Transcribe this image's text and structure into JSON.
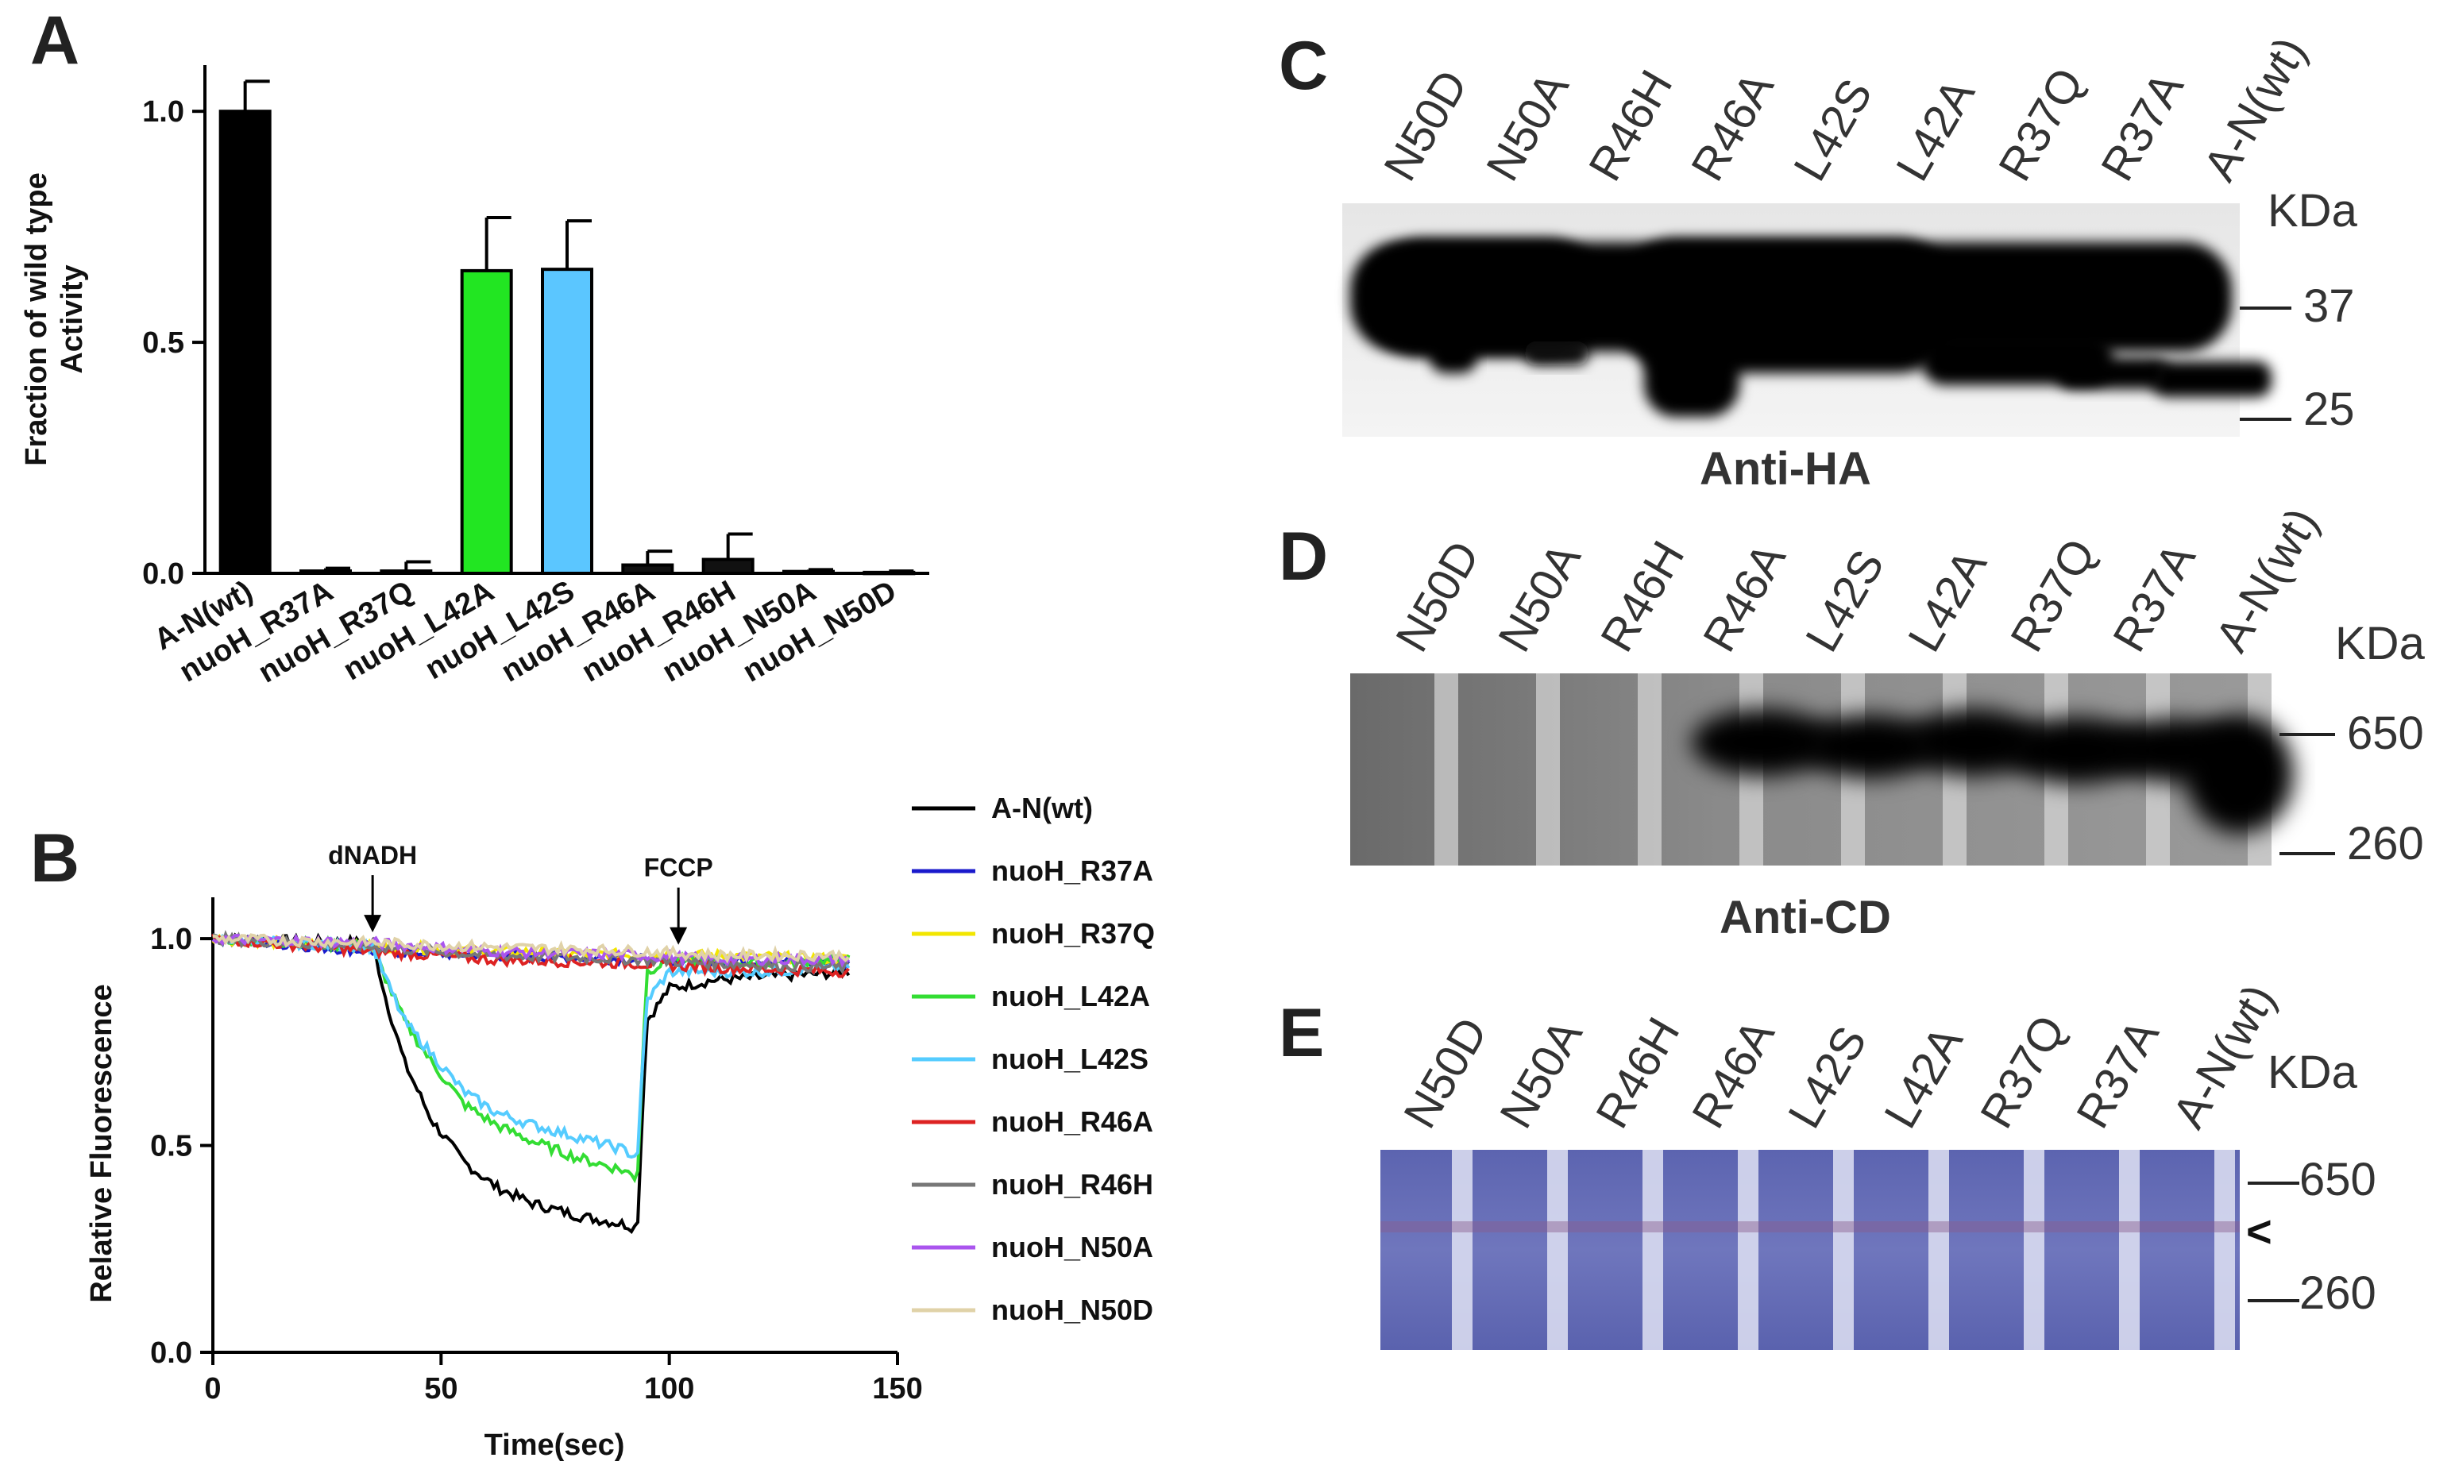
{
  "panels": {
    "A": "A",
    "B": "B",
    "C": "C",
    "D": "D",
    "E": "E"
  },
  "chart_data": [
    {
      "type": "bar",
      "panel": "A",
      "categories": [
        "A-N(wt)",
        "nuoH_R37A",
        "nuoH_R37Q",
        "nuoH_L42A",
        "nuoH_L42S",
        "nuoH_R46A",
        "nuoH_R46H",
        "nuoH_N50A",
        "nuoH_N50D"
      ],
      "values": [
        1.0,
        0.005,
        0.005,
        0.655,
        0.658,
        0.018,
        0.03,
        0.004,
        0.002
      ],
      "errors": [
        0.065,
        0.006,
        0.02,
        0.115,
        0.105,
        0.03,
        0.055,
        0.004,
        0.003
      ],
      "colors": [
        "#000000",
        "#111111",
        "#111111",
        "#22e622",
        "#5bc6ff",
        "#111111",
        "#111111",
        "#111111",
        "#111111"
      ],
      "ylabel_line1": "Fraction of wild type",
      "ylabel_line2": "Activity",
      "ylim": [
        0,
        1.1
      ],
      "yticks": [
        "0.0",
        "0.5",
        "1.0"
      ]
    },
    {
      "type": "line",
      "panel": "B",
      "xlabel": "Time(sec)",
      "ylabel": "Relative Fluorescence",
      "xlim": [
        0,
        150
      ],
      "ylim": [
        0,
        1.1
      ],
      "xticks": [
        "0",
        "50",
        "100",
        "150"
      ],
      "yticks": [
        "0.0",
        "0.5",
        "1.0"
      ],
      "annotations": [
        {
          "label": "dNADH",
          "x": 35,
          "y": 1.0
        },
        {
          "label": "FCCP",
          "x": 102,
          "y": 0.97
        }
      ],
      "series": [
        {
          "name": "A-N(wt)",
          "color": "#000000",
          "points": [
            [
              0,
              1.0
            ],
            [
              35,
              0.99
            ],
            [
              38,
              0.85
            ],
            [
              42,
              0.7
            ],
            [
              48,
              0.56
            ],
            [
              55,
              0.46
            ],
            [
              62,
              0.4
            ],
            [
              70,
              0.36
            ],
            [
              80,
              0.33
            ],
            [
              90,
              0.31
            ],
            [
              93,
              0.3
            ],
            [
              95,
              0.8
            ],
            [
              100,
              0.88
            ],
            [
              110,
              0.9
            ],
            [
              125,
              0.91
            ],
            [
              140,
              0.92
            ]
          ]
        },
        {
          "name": "nuoH_R37A",
          "color": "#1a1acc",
          "points": [
            [
              0,
              1.0
            ],
            [
              35,
              0.97
            ],
            [
              60,
              0.96
            ],
            [
              93,
              0.95
            ],
            [
              110,
              0.95
            ],
            [
              140,
              0.94
            ]
          ]
        },
        {
          "name": "nuoH_R37Q",
          "color": "#f2e600",
          "points": [
            [
              0,
              1.0
            ],
            [
              35,
              0.98
            ],
            [
              60,
              0.97
            ],
            [
              93,
              0.96
            ],
            [
              110,
              0.96
            ],
            [
              140,
              0.95
            ]
          ]
        },
        {
          "name": "nuoH_L42A",
          "color": "#33dd33",
          "points": [
            [
              0,
              1.0
            ],
            [
              35,
              0.98
            ],
            [
              38,
              0.9
            ],
            [
              42,
              0.8
            ],
            [
              48,
              0.7
            ],
            [
              55,
              0.6
            ],
            [
              62,
              0.55
            ],
            [
              70,
              0.51
            ],
            [
              80,
              0.47
            ],
            [
              90,
              0.44
            ],
            [
              93,
              0.42
            ],
            [
              95,
              0.92
            ],
            [
              100,
              0.95
            ],
            [
              120,
              0.94
            ],
            [
              140,
              0.95
            ]
          ]
        },
        {
          "name": "nuoH_L42S",
          "color": "#55ccff",
          "points": [
            [
              0,
              1.0
            ],
            [
              35,
              0.98
            ],
            [
              38,
              0.9
            ],
            [
              42,
              0.8
            ],
            [
              48,
              0.72
            ],
            [
              55,
              0.63
            ],
            [
              62,
              0.58
            ],
            [
              70,
              0.55
            ],
            [
              80,
              0.52
            ],
            [
              90,
              0.49
            ],
            [
              93,
              0.47
            ],
            [
              95,
              0.85
            ],
            [
              100,
              0.92
            ],
            [
              120,
              0.92
            ],
            [
              140,
              0.93
            ]
          ]
        },
        {
          "name": "nuoH_R46A",
          "color": "#dd2222",
          "points": [
            [
              0,
              1.0
            ],
            [
              35,
              0.97
            ],
            [
              60,
              0.95
            ],
            [
              93,
              0.94
            ],
            [
              110,
              0.93
            ],
            [
              140,
              0.92
            ]
          ]
        },
        {
          "name": "nuoH_R46H",
          "color": "#777777",
          "points": [
            [
              0,
              1.0
            ],
            [
              35,
              0.98
            ],
            [
              60,
              0.96
            ],
            [
              93,
              0.95
            ],
            [
              110,
              0.94
            ],
            [
              140,
              0.93
            ]
          ]
        },
        {
          "name": "nuoH_N50A",
          "color": "#aa55ee",
          "points": [
            [
              0,
              1.0
            ],
            [
              35,
              0.99
            ],
            [
              60,
              0.97
            ],
            [
              93,
              0.96
            ],
            [
              110,
              0.95
            ],
            [
              140,
              0.95
            ]
          ]
        },
        {
          "name": "nuoH_N50D",
          "color": "#e0d2a8",
          "points": [
            [
              0,
              1.0
            ],
            [
              35,
              0.99
            ],
            [
              60,
              0.98
            ],
            [
              93,
              0.97
            ],
            [
              110,
              0.96
            ],
            [
              140,
              0.96
            ]
          ]
        }
      ]
    }
  ],
  "blots": {
    "C": {
      "title": "Anti-HA",
      "lanes": [
        "N50D",
        "N50A",
        "R46H",
        "R46A",
        "L42S",
        "L42A",
        "R37Q",
        "R37A",
        "A-N(wt)"
      ],
      "unit": "KDa",
      "markers": [
        "37",
        "25"
      ]
    },
    "D": {
      "title": "Anti-CD",
      "lanes": [
        "N50D",
        "N50A",
        "R46H",
        "R46A",
        "L42S",
        "L42A",
        "R37Q",
        "R37A",
        "A-N(wt)"
      ],
      "unit": "KDa",
      "markers": [
        "650",
        "260"
      ]
    },
    "E": {
      "lanes": [
        "N50D",
        "N50A",
        "R46H",
        "R46A",
        "L42S",
        "L42A",
        "R37Q",
        "R37A",
        "A-N(wt)"
      ],
      "unit": "KDa",
      "markers": [
        "650",
        "260"
      ],
      "arrow": "<"
    }
  }
}
